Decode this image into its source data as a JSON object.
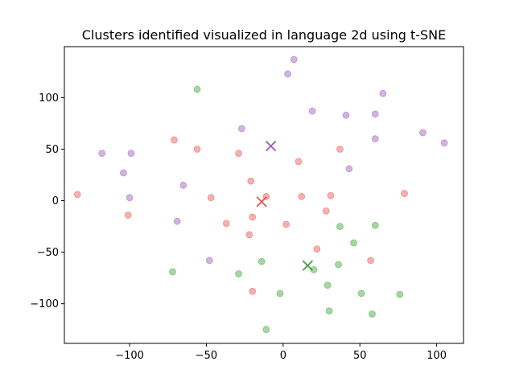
{
  "chart_data": {
    "type": "scatter",
    "title": "Clusters identified visualized in language 2d using t-SNE",
    "xlabel": "",
    "ylabel": "",
    "xlim": [
      -142.5,
      117.5
    ],
    "ylim": [
      -138.5,
      149.5
    ],
    "xticks": [
      -100,
      -50,
      0,
      50,
      100
    ],
    "yticks": [
      -100,
      -50,
      0,
      50,
      100
    ],
    "xtick_labels": [
      "−100",
      "−50",
      "0",
      "50",
      "100"
    ],
    "ytick_labels": [
      "−100",
      "−50",
      "0",
      "50",
      "100"
    ],
    "grid": false,
    "series": [
      {
        "color": "#e8534a",
        "points": [
          [
            -134,
            6
          ],
          [
            -101,
            -14
          ],
          [
            -71,
            59
          ],
          [
            -56,
            50
          ],
          [
            -47,
            3
          ],
          [
            -37,
            -22
          ],
          [
            -29,
            46
          ],
          [
            -22,
            -33
          ],
          [
            -21,
            19
          ],
          [
            -20,
            -16
          ],
          [
            -20,
            -88
          ],
          [
            -11,
            4
          ],
          [
            2,
            -23
          ],
          [
            10,
            38
          ],
          [
            12,
            4
          ],
          [
            22,
            -47
          ],
          [
            28,
            -10
          ],
          [
            31,
            5
          ],
          [
            37,
            50
          ],
          [
            57,
            -58
          ],
          [
            79,
            7
          ]
        ],
        "centroid": [
          -14,
          -1
        ]
      },
      {
        "color": "#3aa53a",
        "points": [
          [
            -56,
            108
          ],
          [
            -72,
            -69
          ],
          [
            -29,
            -71
          ],
          [
            -14,
            -59
          ],
          [
            -11,
            -125
          ],
          [
            -2,
            -90
          ],
          [
            20,
            -67
          ],
          [
            29,
            -82
          ],
          [
            30,
            -107
          ],
          [
            36,
            -62
          ],
          [
            37,
            -25
          ],
          [
            46,
            -41
          ],
          [
            51,
            -90
          ],
          [
            58,
            -110
          ],
          [
            60,
            -24
          ],
          [
            76,
            -91
          ]
        ],
        "centroid": [
          16,
          -63
        ]
      },
      {
        "color": "#9b59b6",
        "points": [
          [
            -118,
            46
          ],
          [
            -104,
            27
          ],
          [
            -99,
            46
          ],
          [
            -100,
            3
          ],
          [
            -69,
            -20
          ],
          [
            -65,
            15
          ],
          [
            -48,
            -58
          ],
          [
            -27,
            70
          ],
          [
            3,
            123
          ],
          [
            7,
            137
          ],
          [
            19,
            87
          ],
          [
            41,
            83
          ],
          [
            43,
            31
          ],
          [
            60,
            84
          ],
          [
            60,
            60
          ],
          [
            65,
            104
          ],
          [
            91,
            66
          ],
          [
            105,
            56
          ]
        ],
        "centroid": [
          -8,
          53
        ]
      }
    ]
  }
}
